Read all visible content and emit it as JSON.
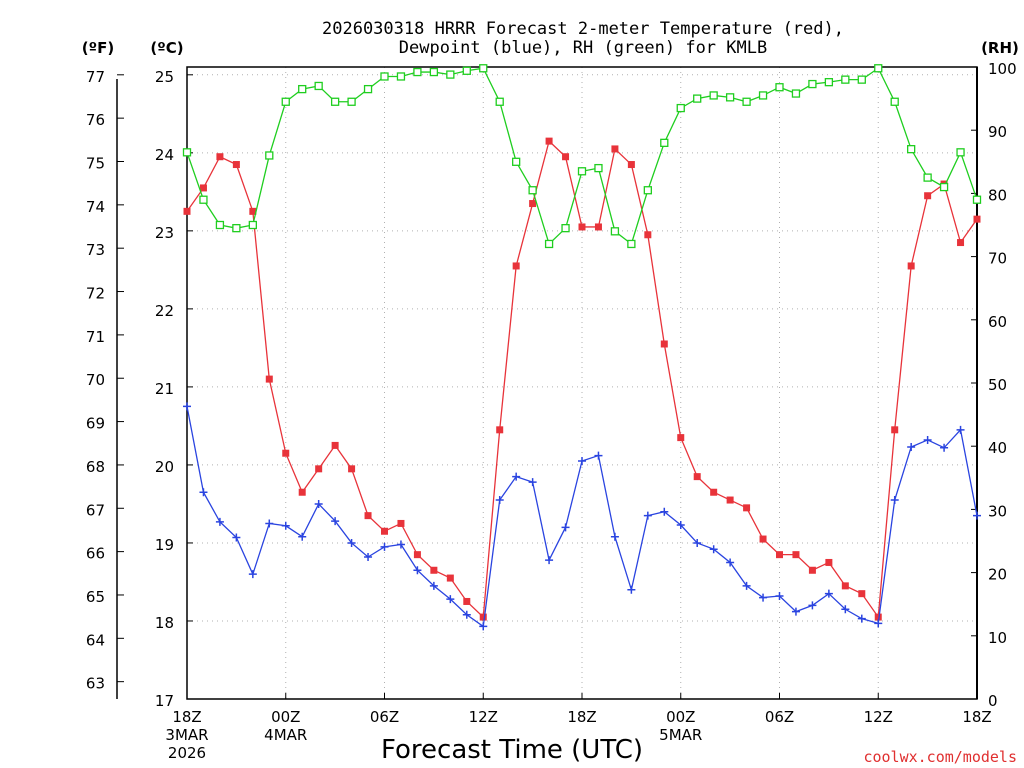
{
  "chart_data": {
    "type": "line",
    "title_line1": "2026030318 HRRR Forecast 2-meter Temperature (red),",
    "title_line2": "Dewpoint (blue), RH (green) for KMLB",
    "xlabel": "Forecast Time (UTC)",
    "credit": "coolwx.com/models",
    "units": {
      "fahrenheit": "(ºF)",
      "celsius": "(ºC)",
      "rh": "(RH)"
    },
    "x_range_hours": [
      0,
      48
    ],
    "celsius_range": [
      17,
      25.1
    ],
    "rh_range": [
      0,
      100
    ],
    "celsius_ticks": [
      "17",
      "18",
      "19",
      "20",
      "21",
      "22",
      "23",
      "24",
      "25"
    ],
    "fahrenheit_ticks": [
      "63",
      "64",
      "65",
      "66",
      "67",
      "68",
      "69",
      "70",
      "71",
      "72",
      "73",
      "74",
      "75",
      "76",
      "77"
    ],
    "rh_ticks": [
      "0",
      "10",
      "20",
      "30",
      "40",
      "50",
      "60",
      "70",
      "80",
      "90",
      "100"
    ],
    "x_ticks": [
      {
        "hour": 0,
        "label": "18Z",
        "sub1": "3MAR",
        "sub2": "2026"
      },
      {
        "hour": 6,
        "label": "00Z",
        "sub1": "4MAR",
        "sub2": ""
      },
      {
        "hour": 12,
        "label": "06Z",
        "sub1": "",
        "sub2": ""
      },
      {
        "hour": 18,
        "label": "12Z",
        "sub1": "",
        "sub2": ""
      },
      {
        "hour": 24,
        "label": "18Z",
        "sub1": "",
        "sub2": ""
      },
      {
        "hour": 30,
        "label": "00Z",
        "sub1": "5MAR",
        "sub2": ""
      },
      {
        "hour": 36,
        "label": "06Z",
        "sub1": "",
        "sub2": ""
      },
      {
        "hour": 42,
        "label": "12Z",
        "sub1": "",
        "sub2": ""
      },
      {
        "hour": 48,
        "label": "18Z",
        "sub1": "",
        "sub2": ""
      }
    ],
    "series": [
      {
        "name": "Temperature",
        "unit": "C",
        "axis": "celsius",
        "color": "#e8333a",
        "marker": "filled-square",
        "values": [
          23.25,
          23.55,
          23.95,
          23.85,
          23.25,
          21.1,
          20.15,
          19.65,
          19.95,
          20.25,
          19.95,
          19.35,
          19.15,
          19.25,
          18.85,
          18.65,
          18.55,
          18.25,
          18.05,
          20.45,
          22.55,
          23.35,
          24.15,
          23.95,
          23.05,
          23.05,
          24.05,
          23.85,
          22.95,
          21.55,
          20.35,
          19.85,
          19.65,
          19.55,
          19.45,
          19.05,
          18.85,
          18.85,
          18.65,
          18.75,
          18.45,
          18.35,
          18.05,
          20.45,
          22.55,
          23.45,
          23.6,
          22.85,
          23.15
        ]
      },
      {
        "name": "Dewpoint",
        "unit": "C",
        "axis": "celsius",
        "color": "#2a44e0",
        "marker": "plus",
        "values": [
          20.75,
          19.65,
          19.27,
          19.07,
          18.6,
          19.25,
          19.22,
          19.08,
          19.5,
          19.28,
          19.0,
          18.82,
          18.95,
          18.98,
          18.65,
          18.45,
          18.28,
          18.08,
          17.93,
          19.55,
          19.85,
          19.78,
          18.78,
          19.2,
          20.05,
          20.12,
          19.08,
          18.4,
          19.35,
          19.4,
          19.23,
          19.0,
          18.92,
          18.75,
          18.45,
          18.3,
          18.32,
          18.12,
          18.2,
          18.35,
          18.15,
          18.03,
          17.97,
          19.55,
          20.23,
          20.32,
          20.22,
          20.45,
          19.35
        ]
      },
      {
        "name": "RH",
        "unit": "%",
        "axis": "rh",
        "color": "#1fce1f",
        "marker": "open-square",
        "values": [
          86.5,
          79,
          75,
          74.5,
          75,
          86,
          94.5,
          96.5,
          97,
          94.5,
          94.5,
          96.5,
          98.5,
          98.5,
          99.2,
          99.2,
          98.8,
          99.4,
          99.8,
          94.5,
          85,
          80.5,
          72,
          74.5,
          83.5,
          84,
          74,
          72,
          80.5,
          88,
          93.5,
          95,
          95.5,
          95.2,
          94.5,
          95.5,
          96.8,
          95.8,
          97.3,
          97.6,
          98,
          98,
          99.8,
          94.5,
          87,
          82.5,
          81,
          86.5,
          79
        ]
      }
    ]
  }
}
